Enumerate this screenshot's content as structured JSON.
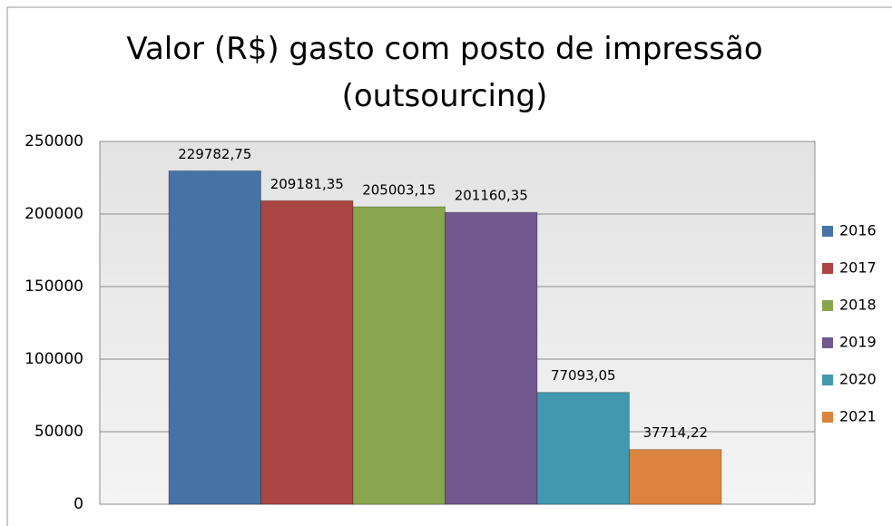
{
  "chart_data": {
    "type": "bar",
    "title": "Valor (R$) gasto com posto de impressão (outsourcing)",
    "categories": [
      null
    ],
    "series": [
      {
        "name": "2016",
        "color": "#4572a7",
        "values": [
          229782.75
        ],
        "value_labels": [
          "229782,75"
        ]
      },
      {
        "name": "2017",
        "color": "#aa4643",
        "values": [
          209181.35
        ],
        "value_labels": [
          "209181,35"
        ]
      },
      {
        "name": "2018",
        "color": "#89a54e",
        "values": [
          205003.15
        ],
        "value_labels": [
          "205003,15"
        ]
      },
      {
        "name": "2019",
        "color": "#71588f",
        "values": [
          201160.35
        ],
        "value_labels": [
          "201160,35"
        ]
      },
      {
        "name": "2020",
        "color": "#4198af",
        "values": [
          77093.05
        ],
        "value_labels": [
          "77093,05"
        ]
      },
      {
        "name": "2021",
        "color": "#db843d",
        "values": [
          37714.22
        ],
        "value_labels": [
          "37714,22"
        ]
      }
    ],
    "ylim": [
      0,
      250000
    ],
    "yticks": [
      0,
      50000,
      100000,
      150000,
      200000,
      250000
    ],
    "grid": true,
    "legend": "right"
  }
}
